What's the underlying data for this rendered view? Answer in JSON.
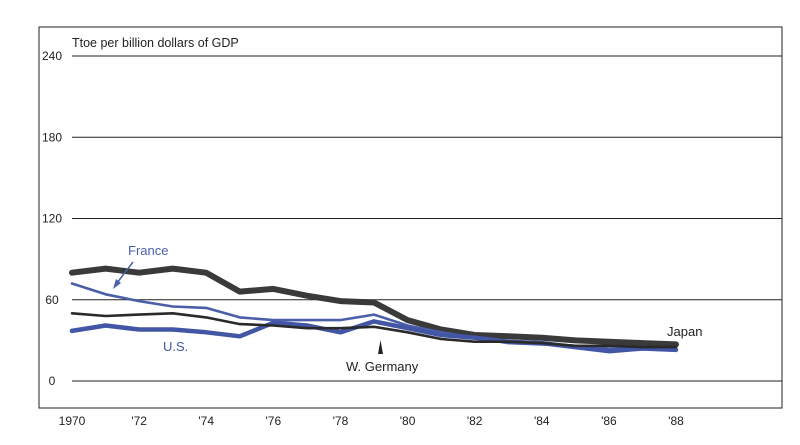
{
  "chart_data": {
    "type": "line",
    "title": "",
    "ylabel": "Ttoe per billion dollars of GDP",
    "xlabel": "",
    "ylim": [
      0,
      240
    ],
    "yticks": [
      0,
      60,
      120,
      180,
      240
    ],
    "ytick_labels": [
      "0",
      "60",
      "120",
      "180",
      "240"
    ],
    "xlim": [
      1970,
      1990
    ],
    "xticks": [
      1970,
      1972,
      1974,
      1976,
      1978,
      1980,
      1982,
      1984,
      1986,
      1988
    ],
    "xtick_labels": [
      "1970",
      "'72",
      "'74",
      "'76",
      "'78",
      "'80",
      "'82",
      "'84",
      "'86",
      "'88"
    ],
    "grid": true,
    "series": [
      {
        "name": "Japan",
        "color": "#3a3a3a",
        "x": [
          1970,
          1971,
          1972,
          1973,
          1974,
          1975,
          1976,
          1977,
          1978,
          1979,
          1980,
          1981,
          1982,
          1983,
          1984,
          1985,
          1986,
          1987,
          1988
        ],
        "values": [
          80,
          83,
          80,
          83,
          80,
          66,
          68,
          63,
          59,
          58,
          45,
          38,
          34,
          33,
          32,
          30,
          29,
          28,
          27
        ]
      },
      {
        "name": "France",
        "color": "#4a5fa8",
        "x": [
          1970,
          1971,
          1972,
          1973,
          1974,
          1975,
          1976,
          1977,
          1978,
          1979,
          1980,
          1981,
          1982,
          1983,
          1984,
          1985,
          1986,
          1987,
          1988
        ],
        "values": [
          72,
          64,
          59,
          55,
          54,
          47,
          45,
          45,
          45,
          49,
          41,
          36,
          32,
          28,
          27,
          26,
          24,
          24,
          24
        ]
      },
      {
        "name": "U.S.",
        "color": "#4356a5",
        "x": [
          1970,
          1971,
          1972,
          1973,
          1974,
          1975,
          1976,
          1977,
          1978,
          1979,
          1980,
          1981,
          1982,
          1983,
          1984,
          1985,
          1986,
          1987,
          1988
        ],
        "values": [
          37,
          41,
          38,
          38,
          36,
          33,
          43,
          41,
          36,
          44,
          39,
          34,
          32,
          29,
          28,
          25,
          22,
          24,
          23
        ]
      },
      {
        "name": "W. Germany",
        "color": "#2a2a2a",
        "x": [
          1970,
          1971,
          1972,
          1973,
          1974,
          1975,
          1976,
          1977,
          1978,
          1979,
          1980,
          1981,
          1982,
          1983,
          1984,
          1985,
          1986,
          1987,
          1988
        ],
        "values": [
          50,
          48,
          49,
          50,
          47,
          42,
          41,
          39,
          39,
          40,
          36,
          31,
          29,
          29,
          28,
          26,
          26,
          25,
          25
        ]
      }
    ],
    "annotations": [
      {
        "text": "Japan",
        "series": "Japan"
      },
      {
        "text": "France",
        "series": "France"
      },
      {
        "text": "U.S.",
        "series": "U.S."
      },
      {
        "text": "W. Germany",
        "series": "W. Germany"
      }
    ]
  }
}
